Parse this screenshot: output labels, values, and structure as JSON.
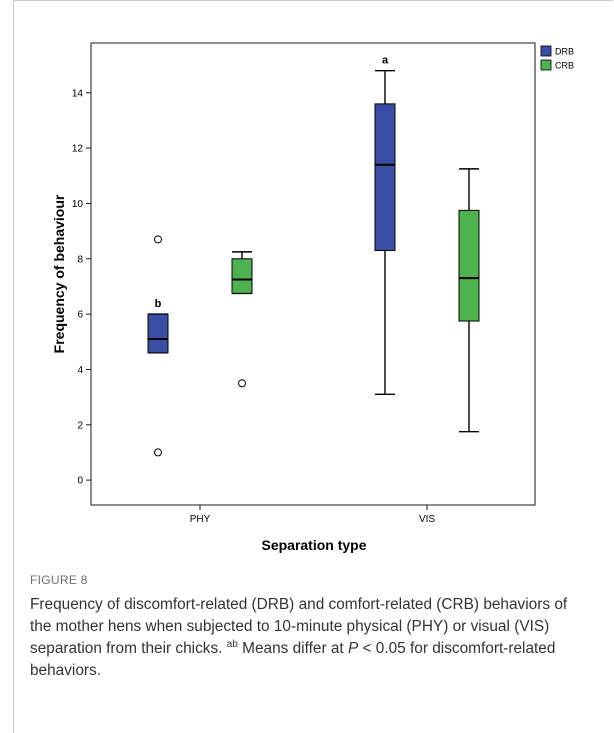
{
  "chart_data": {
    "type": "boxplot",
    "xlabel": "Separation type",
    "ylabel": "Frequency of behaviour",
    "ylim": [
      -0.9,
      15.8
    ],
    "yticks": [
      0,
      2,
      4,
      6,
      8,
      10,
      12,
      14
    ],
    "categories": [
      "PHY",
      "VIS"
    ],
    "legend_position": "top-right",
    "series": [
      {
        "name": "DRB",
        "color": "#3a4ea6",
        "boxes": [
          {
            "category": "PHY",
            "whisker_low": 4.6,
            "q1": 4.6,
            "median": 5.1,
            "q3": 6.0,
            "whisker_high": 6.0,
            "outliers": [
              8.7,
              1.0
            ],
            "annotation": "b"
          },
          {
            "category": "VIS",
            "whisker_low": 3.1,
            "q1": 8.3,
            "median": 11.4,
            "q3": 13.6,
            "whisker_high": 14.8,
            "outliers": [],
            "annotation": "a"
          }
        ]
      },
      {
        "name": "CRB",
        "color": "#4db24f",
        "boxes": [
          {
            "category": "PHY",
            "whisker_low": 6.75,
            "q1": 6.75,
            "median": 7.25,
            "q3": 8.0,
            "whisker_high": 8.25,
            "outliers": [
              3.5
            ],
            "annotation": ""
          },
          {
            "category": "VIS",
            "whisker_low": 1.75,
            "q1": 5.75,
            "median": 7.3,
            "q3": 9.75,
            "whisker_high": 11.25,
            "outliers": [],
            "annotation": ""
          }
        ]
      }
    ]
  },
  "caption": {
    "label": "FIGURE 8",
    "text_main": "Frequency of discomfort-related (DRB) and comfort-related (CRB) behaviors of the mother hens when subjected to 10-minute physical (PHY) or visual (VIS) separation from their chicks.",
    "superscript": "ab",
    "text_means": "Means differ at",
    "p_symbol": "P",
    "text_tail": "< 0.05 for discomfort-related behaviors."
  }
}
